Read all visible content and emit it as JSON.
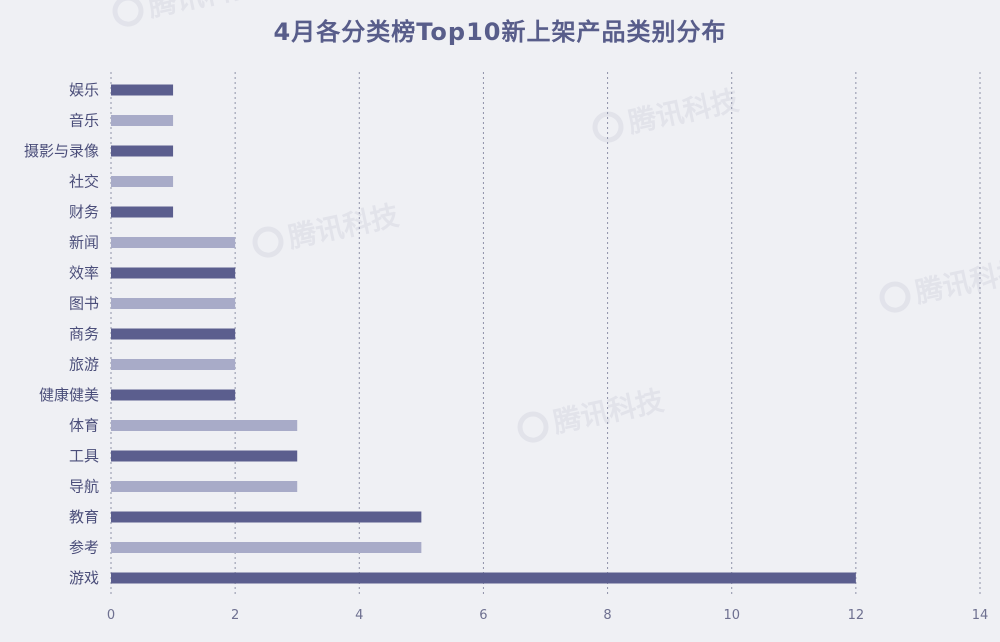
{
  "chart_data": {
    "type": "bar",
    "orientation": "horizontal",
    "title": "4月各分类榜Top10新上架产品类别分布",
    "categories": [
      "娱乐",
      "音乐",
      "摄影与录像",
      "社交",
      "财务",
      "新闻",
      "效率",
      "图书",
      "商务",
      "旅游",
      "健康健美",
      "体育",
      "工具",
      "导航",
      "教育",
      "参考",
      "游戏"
    ],
    "values": [
      1,
      1,
      1,
      1,
      1,
      2,
      2,
      2,
      2,
      2,
      2,
      3,
      3,
      3,
      5,
      5,
      12
    ],
    "xlim": [
      0,
      14
    ],
    "xticks": [
      0,
      2,
      4,
      6,
      8,
      10,
      12,
      14
    ],
    "grid": "vertical-dotted",
    "bar_colors": [
      "#5b5e8e",
      "#a8abc8"
    ]
  },
  "watermark": {
    "text": "腾讯科技",
    "icon": "tencent-logo-icon"
  }
}
